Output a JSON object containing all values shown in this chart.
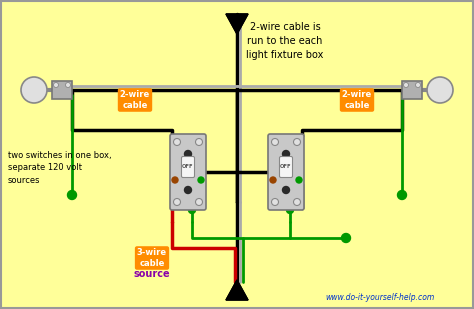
{
  "bg_color": "#FFFF99",
  "title_text": "2-wire cable is\nrun to the each\nlight fixture box",
  "label_2wire_left": "2-wire\ncable",
  "label_2wire_right": "2-wire\ncable",
  "label_3wire": "3-wire\ncable",
  "label_source": "source",
  "label_switches": "two switches in one box,\nseparate 120 volt\nsources",
  "website": "www.do-it-yourself-help.com",
  "orange_bg": "#FF8C00",
  "white_color": "#FFFFFF",
  "black_color": "#000000",
  "green_color": "#009900",
  "red_color": "#CC0000",
  "gray_color": "#AAAAAA",
  "blue_text": "#0033CC",
  "purple_text": "#8800AA",
  "switch_fill": "#C8C8C8",
  "brown_color": "#994400",
  "wire_lw": 2.2,
  "figw": 4.74,
  "figh": 3.09,
  "dpi": 100
}
